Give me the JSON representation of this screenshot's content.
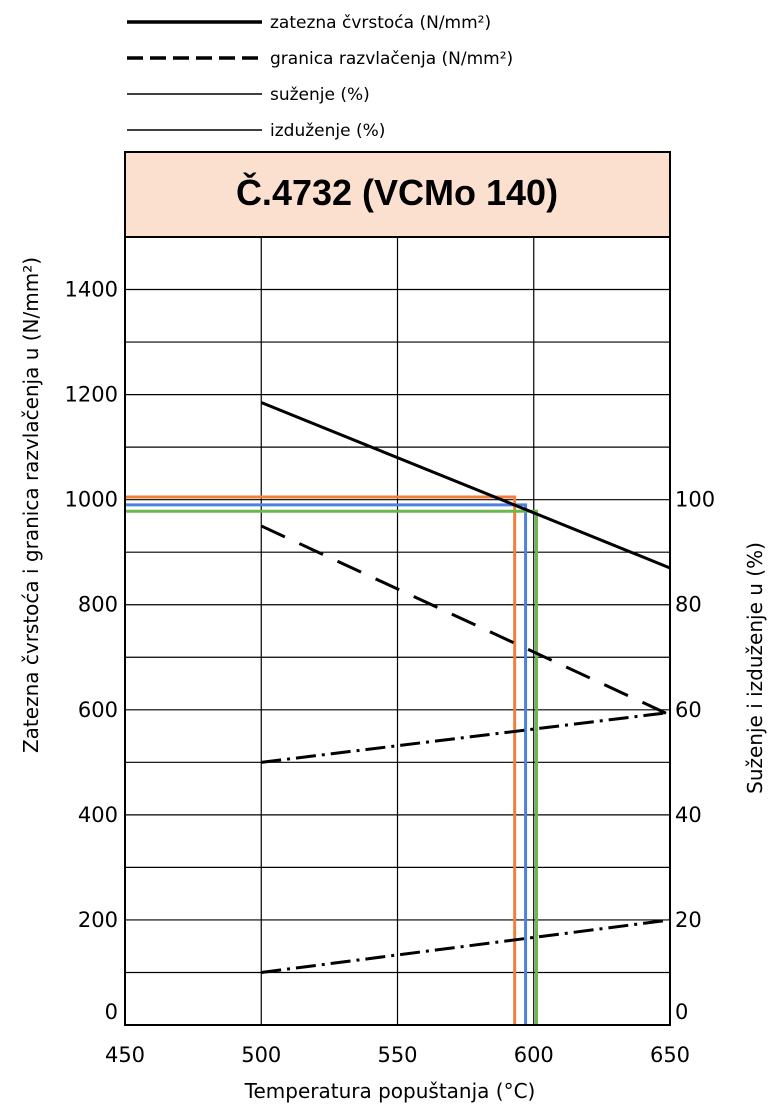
{
  "chart_data": {
    "type": "line",
    "title": "Č.4732 (VCMo 140)",
    "title_box_color": "#fbe0d0",
    "xlabel": "Temperatura popuštanja (°C)",
    "ylabel_left": "Zatezna čvrstoća i granica razvlačenja u   (N/mm²)",
    "ylabel_right": "Suženje i izduženje u (%)",
    "xlim": [
      450,
      650
    ],
    "ylim_left": [
      0,
      1500
    ],
    "ylim_right": [
      0,
      150
    ],
    "x_ticks": [
      "450",
      "500",
      "550",
      "600",
      "650"
    ],
    "y_left_ticks": [
      "0",
      "200",
      "400",
      "600",
      "800",
      "1000",
      "1200",
      "1400"
    ],
    "y_right_ticks": [
      "0",
      "20",
      "40",
      "60",
      "80",
      "100"
    ],
    "grid": true,
    "legend_position": "top",
    "legend": [
      {
        "label": "zatezna čvrstoća (N/mm²)",
        "style": "solid-thick"
      },
      {
        "label": "granica razvlačenja (N/mm²)",
        "style": "dashed"
      },
      {
        "label": "suženje (%)",
        "style": "solid-thin"
      },
      {
        "label": "izduženje (%)",
        "style": "solid-thin"
      }
    ],
    "series": [
      {
        "name": "zatezna čvrstoća (N/mm²)",
        "axis": "left",
        "style": "solid",
        "x": [
          500,
          650
        ],
        "y": [
          1185,
          870
        ]
      },
      {
        "name": "granica razvlačenja (N/mm²)",
        "axis": "left",
        "style": "dashed",
        "x": [
          500,
          650
        ],
        "y": [
          950,
          590
        ]
      },
      {
        "name": "suženje (%)",
        "axis": "right",
        "style": "dashdot",
        "x": [
          500,
          650
        ],
        "y": [
          50,
          59.5
        ]
      },
      {
        "name": "izduženje (%)",
        "axis": "right",
        "style": "dashdot",
        "x": [
          500,
          650
        ],
        "y": [
          10,
          20
        ]
      }
    ],
    "reference_lines": [
      {
        "color": "#f07f3c",
        "y": 1005,
        "x": 593
      },
      {
        "color": "#4f81e0",
        "y": 990,
        "x": 597
      },
      {
        "color": "#6ab84a",
        "y": 978,
        "x": 601
      }
    ]
  }
}
